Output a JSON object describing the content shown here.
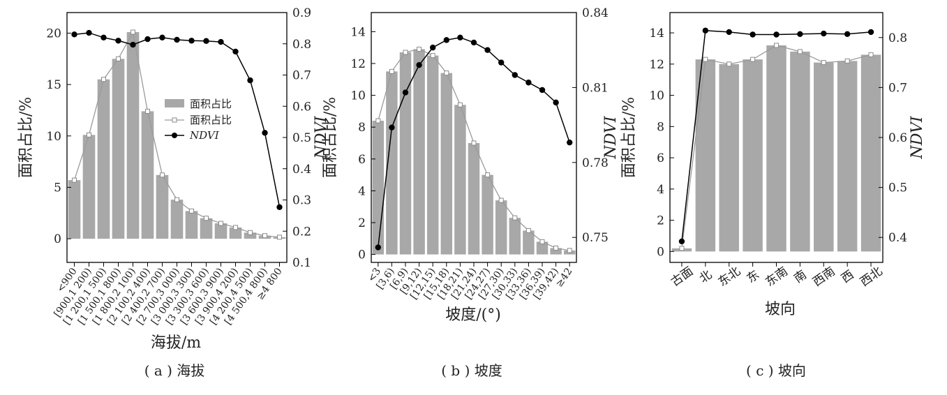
{
  "charts": [
    {
      "id": "a",
      "type": "bar+line",
      "caption": "( a ) 海拔",
      "xlabel": "海拔/m",
      "ylabel_left": "面积占比/%",
      "ylabel_right": "NDVI",
      "ylim_left": [
        -2.3,
        22.0
      ],
      "yticks_left": [
        0,
        5,
        10,
        15,
        20
      ],
      "ylim_right": [
        0.1,
        0.9
      ],
      "yticks_right": [
        "0.1",
        "0.2",
        "0.3",
        "0.4",
        "0.5",
        "0.6",
        "0.7",
        "0.8",
        "0.9"
      ],
      "categories": [
        "<900",
        "[900,1 200)",
        "[1 200,1 500)",
        "[1 500,1 800)",
        "[1 800,2 100)",
        "[2 100,2 400)",
        "[2 400,2 700)",
        "[2 700,3 000)",
        "[3 000,3 300)",
        "[3 300,3 600)",
        "[3 600,3 900)",
        "[3 900,4 200)",
        "[4 200,4 500)",
        "[4 500,4 800)",
        "≥4 800"
      ],
      "area_pct": [
        5.7,
        10.1,
        15.5,
        17.5,
        20.1,
        12.4,
        6.2,
        3.8,
        2.7,
        2.0,
        1.5,
        1.1,
        0.6,
        0.3,
        0.15
      ],
      "ndvi": [
        0.83,
        0.835,
        0.82,
        0.81,
        0.797,
        0.815,
        0.82,
        0.813,
        0.81,
        0.809,
        0.806,
        0.775,
        0.683,
        0.515,
        0.277
      ],
      "legend": [
        "面积占比",
        "面积占比",
        "NDVI"
      ]
    },
    {
      "id": "b",
      "type": "bar+line",
      "caption": "( b ) 坡度",
      "xlabel": "坡度/(°)",
      "ylabel_left": "面积占比/%",
      "ylabel_right": "NDVI",
      "ylim_left": [
        -0.5,
        15.2
      ],
      "yticks_left": [
        0,
        2,
        4,
        6,
        8,
        10,
        12,
        14
      ],
      "ylim_right": [
        0.74,
        0.84
      ],
      "yticks_right": [
        "0.75",
        "0.78",
        "0.81",
        "0.84"
      ],
      "yticks_right_values": [
        0.75,
        0.78,
        0.81,
        0.84
      ],
      "categories": [
        "<3",
        "[3,6)",
        "[6,9)",
        "[9,12)",
        "[12,15)",
        "[15,18)",
        "[18,21)",
        "[21,24)",
        "[24,27)",
        "[27,30)",
        "[30,33)",
        "[33,36)",
        "[36,39)",
        "[39,42)",
        "≥42"
      ],
      "area_pct": [
        8.4,
        11.5,
        12.7,
        12.9,
        12.5,
        11.4,
        9.4,
        7.0,
        5.0,
        3.4,
        2.3,
        1.5,
        0.8,
        0.4,
        0.25
      ],
      "ndvi": [
        0.746,
        0.794,
        0.808,
        0.819,
        0.826,
        0.829,
        0.83,
        0.828,
        0.825,
        0.82,
        0.815,
        0.812,
        0.809,
        0.804,
        0.788
      ]
    },
    {
      "id": "c",
      "type": "bar+line",
      "caption": "( c ) 坡向",
      "xlabel": "坡向",
      "ylabel_left": "面积占比/%",
      "ylabel_right": "NDVI",
      "ylim_left": [
        -0.7,
        15.3
      ],
      "yticks_left": [
        0,
        2,
        4,
        6,
        8,
        10,
        12,
        14
      ],
      "ylim_right": [
        0.35,
        0.85
      ],
      "yticks_right": [
        "0.4",
        "0.5",
        "0.6",
        "0.7",
        "0.8"
      ],
      "yticks_right_values": [
        0.4,
        0.5,
        0.6,
        0.7,
        0.8
      ],
      "categories": [
        "古面",
        "北",
        "东北",
        "东",
        "东南",
        "南",
        "西南",
        "西",
        "西北"
      ],
      "area_pct": [
        0.2,
        12.3,
        12.0,
        12.3,
        13.2,
        12.8,
        12.1,
        12.2,
        12.6
      ],
      "ndvi": [
        0.392,
        0.814,
        0.811,
        0.806,
        0.806,
        0.807,
        0.808,
        0.807,
        0.811
      ]
    }
  ]
}
